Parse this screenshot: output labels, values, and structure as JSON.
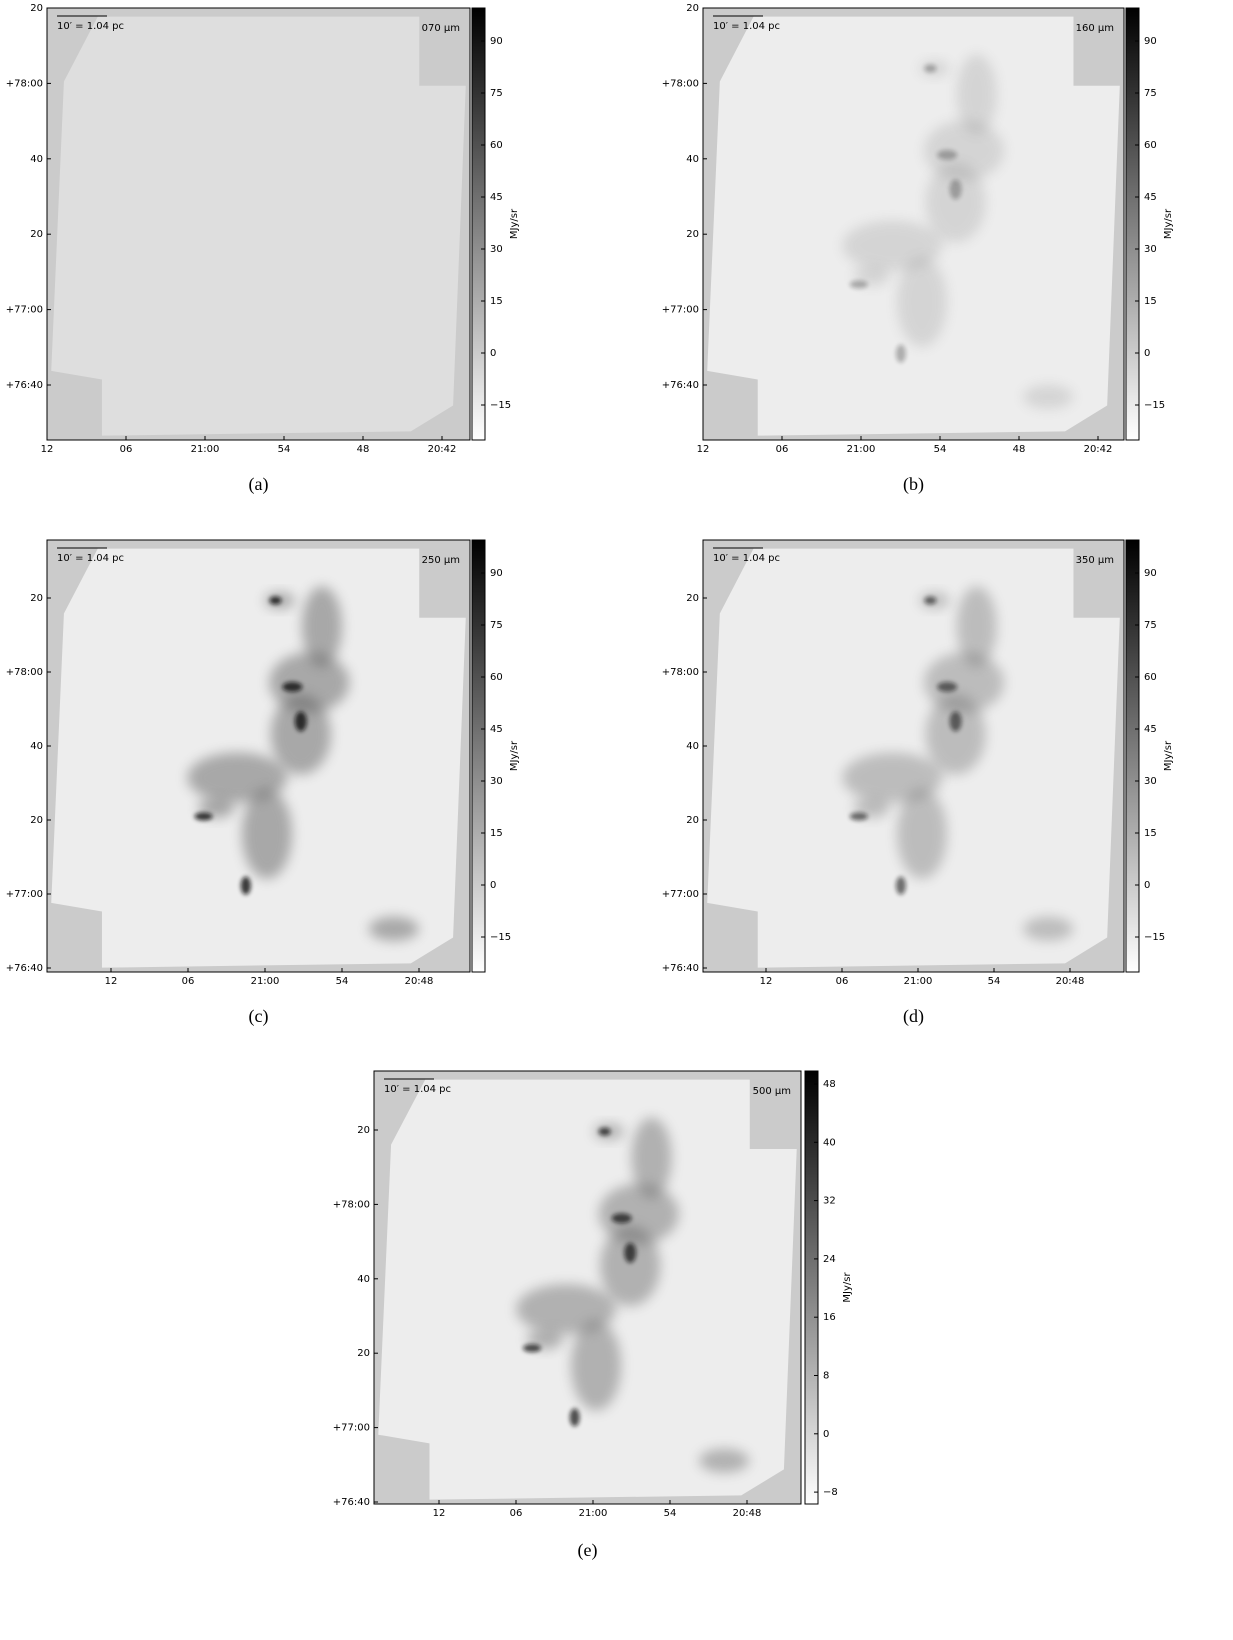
{
  "panels": [
    {
      "label": "(a)",
      "band": "070 μm",
      "scale": "10′ = 1.04 pc",
      "unit": "MJy/sr",
      "colorbar_ticks": [
        "90",
        "75",
        "60",
        "45",
        "30",
        "15",
        "0",
        "−15"
      ],
      "x_ticks": [
        "12",
        "06",
        "21:00",
        "54",
        "48",
        "20:42"
      ],
      "y_ticks": [
        "20",
        "+78:00",
        "40",
        "20",
        "+77:00",
        "+76:40"
      ]
    },
    {
      "label": "(b)",
      "band": "160 μm",
      "scale": "10′ = 1.04 pc",
      "unit": "MJy/sr",
      "colorbar_ticks": [
        "90",
        "75",
        "60",
        "45",
        "30",
        "15",
        "0",
        "−15"
      ],
      "x_ticks": [
        "12",
        "06",
        "21:00",
        "54",
        "48",
        "20:42"
      ],
      "y_ticks": [
        "20",
        "+78:00",
        "40",
        "20",
        "+77:00",
        "+76:40"
      ]
    },
    {
      "label": "(c)",
      "band": "250 μm",
      "scale": "10′ = 1.04 pc",
      "unit": "MJy/sr",
      "colorbar_ticks": [
        "90",
        "75",
        "60",
        "45",
        "30",
        "15",
        "0",
        "−15"
      ],
      "x_ticks": [
        "12",
        "06",
        "21:00",
        "54",
        "20:48"
      ],
      "y_ticks": [
        "20",
        "+78:00",
        "40",
        "20",
        "+77:00",
        "+76:40"
      ]
    },
    {
      "label": "(d)",
      "band": "350 μm",
      "scale": "10′ = 1.04 pc",
      "unit": "MJy/sr",
      "colorbar_ticks": [
        "90",
        "75",
        "60",
        "45",
        "30",
        "15",
        "0",
        "−15"
      ],
      "x_ticks": [
        "12",
        "06",
        "21:00",
        "54",
        "20:48"
      ],
      "y_ticks": [
        "20",
        "+78:00",
        "40",
        "20",
        "+77:00",
        "+76:40"
      ]
    },
    {
      "label": "(e)",
      "band": "500 μm",
      "scale": "10′ = 1.04 pc",
      "unit": "MJy/sr",
      "colorbar_ticks": [
        "48",
        "40",
        "32",
        "24",
        "16",
        "8",
        "0",
        "−8"
      ],
      "x_ticks": [
        "12",
        "06",
        "21:00",
        "54",
        "20:48"
      ],
      "y_ticks": [
        "20",
        "+78:00",
        "40",
        "20",
        "+77:00",
        "+76:40"
      ]
    }
  ]
}
